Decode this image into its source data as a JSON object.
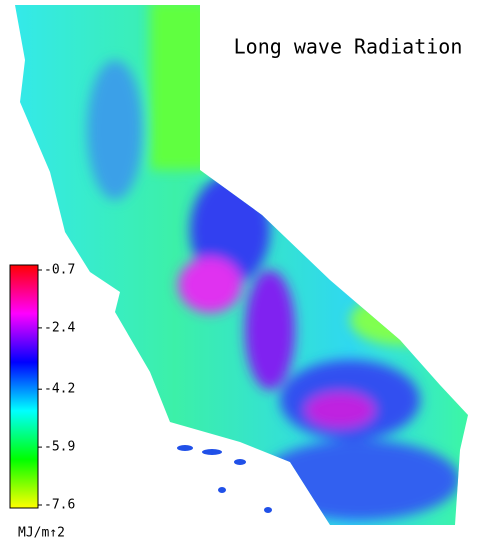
{
  "title": "Long wave Radiation",
  "colorbar": {
    "lim": [
      -7.6,
      -0.7
    ],
    "ticks": [
      -0.7,
      -2.4,
      -4.2,
      -5.9,
      -7.6
    ],
    "colors": [
      "#ffff00",
      "#00ff00",
      "#00ffff",
      "#0000ff",
      "#ff00ff",
      "#ff0000"
    ],
    "unit": "MJ/m↑2"
  }
}
